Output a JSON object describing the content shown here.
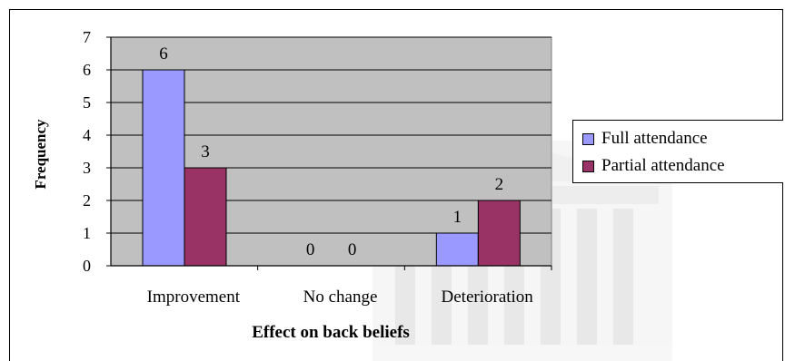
{
  "chart_data": {
    "type": "bar",
    "title": "",
    "xlabel": "Effect on back beliefs",
    "ylabel": "Frequency",
    "categories": [
      "Improvement",
      "No change",
      "Deterioration"
    ],
    "series": [
      {
        "name": "Full attendance",
        "values": [
          6,
          0,
          1
        ],
        "color": "#9999ff"
      },
      {
        "name": "Partial attendance",
        "values": [
          3,
          0,
          2
        ],
        "color": "#993366"
      }
    ],
    "ylim": [
      0,
      7
    ],
    "yticks": [
      "0",
      "1",
      "2",
      "3",
      "4",
      "5",
      "6",
      "7"
    ],
    "data_labels": [
      [
        "6",
        "0",
        "1"
      ],
      [
        "3",
        "0",
        "2"
      ]
    ],
    "grid": true,
    "legend_position": "right",
    "plot_background": "#c0c0c0"
  }
}
